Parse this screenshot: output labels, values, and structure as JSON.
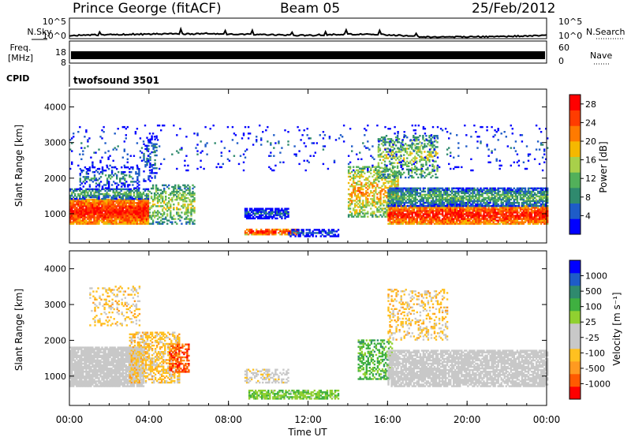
{
  "header": {
    "station": "Prince George (fitACF)",
    "beam": "Beam 05",
    "date": "25/Feb/2012"
  },
  "top_panels": {
    "nsky_label": "N.Sky",
    "nsky_ticks": [
      "10^5",
      "10^0"
    ],
    "nsearch_label": "N.Search",
    "nsearch_ticks": [
      "10^5",
      "10^0"
    ],
    "freq_label_1": "Freq.",
    "freq_label_2": "[MHz]",
    "freq_ticks": [
      "18",
      "8"
    ],
    "nave_label": "Nave",
    "nave_ticks": [
      "60",
      "0"
    ],
    "cpid_label": "CPID",
    "cpid_value": "twofsound 3501"
  },
  "colors": {
    "power": [
      "#0000ff",
      "#1e5cc8",
      "#2f8a6e",
      "#52b05a",
      "#a8d04a",
      "#f5b800",
      "#ff7a00",
      "#ff3c00",
      "#ff0000"
    ],
    "velocity": [
      "#ff0000",
      "#ff5a00",
      "#ff9a20",
      "#ffc020",
      "#c8c8c8",
      "#c8c8c8",
      "#90d030",
      "#3fb040",
      "#2f8a6e",
      "#1e5cc8",
      "#0000ff"
    ],
    "frame": "#000000"
  },
  "chart_data": [
    {
      "type": "heatmap",
      "name": "Power",
      "ylabel": "Slant Range [km]",
      "ylim": [
        180,
        4500
      ],
      "yticks": [
        "1000",
        "2000",
        "3000",
        "4000"
      ],
      "xlim": [
        0,
        24
      ],
      "xticks": [
        "00:00",
        "04:00",
        "08:00",
        "12:00",
        "16:00",
        "20:00",
        "00:00"
      ],
      "colorbar": {
        "label": "Power [dB]",
        "ticks": [
          "4",
          "8",
          "12",
          "16",
          "20",
          "24",
          "28"
        ],
        "range": [
          0,
          30
        ]
      },
      "regions": [
        {
          "t": [
            0.0,
            4.0
          ],
          "r": [
            700,
            1400
          ],
          "v": 28,
          "density": 0.95
        },
        {
          "t": [
            0.0,
            4.0
          ],
          "r": [
            1400,
            1700
          ],
          "v": 12,
          "density": 0.7
        },
        {
          "t": [
            0.5,
            3.5
          ],
          "r": [
            1700,
            2300
          ],
          "v": 8,
          "density": 0.35
        },
        {
          "t": [
            4.0,
            6.3
          ],
          "r": [
            700,
            1800
          ],
          "v": 16,
          "density": 0.45
        },
        {
          "t": [
            3.7,
            4.4
          ],
          "r": [
            1900,
            3200
          ],
          "v": 8,
          "density": 0.3
        },
        {
          "t": [
            8.8,
            11.0
          ],
          "r": [
            850,
            1150
          ],
          "v": 6,
          "density": 0.75
        },
        {
          "t": [
            8.8,
            11.5
          ],
          "r": [
            400,
            550
          ],
          "v": 28,
          "density": 0.85
        },
        {
          "t": [
            11.0,
            13.5
          ],
          "r": [
            350,
            550
          ],
          "v": 6,
          "density": 0.6
        },
        {
          "t": [
            14.0,
            16.5
          ],
          "r": [
            900,
            2300
          ],
          "v": 20,
          "density": 0.5
        },
        {
          "t": [
            16.0,
            24.0
          ],
          "r": [
            700,
            1200
          ],
          "v": 28,
          "density": 0.9
        },
        {
          "t": [
            16.0,
            24.0
          ],
          "r": [
            1200,
            1700
          ],
          "v": 12,
          "density": 0.8
        },
        {
          "t": [
            15.5,
            18.5
          ],
          "r": [
            2000,
            3200
          ],
          "v": 16,
          "density": 0.4
        },
        {
          "t": [
            0.0,
            24.0
          ],
          "r": [
            2200,
            3500
          ],
          "v": 6,
          "density": 0.05
        }
      ]
    },
    {
      "type": "heatmap",
      "name": "Velocity",
      "ylabel": "Slant Range [km]",
      "ylim": [
        180,
        4500
      ],
      "yticks": [
        "1000",
        "2000",
        "3000",
        "4000"
      ],
      "xlim": [
        0,
        24
      ],
      "xticks": [
        "00:00",
        "04:00",
        "08:00",
        "12:00",
        "16:00",
        "20:00",
        "00:00"
      ],
      "xlabel": "Time UT",
      "colorbar": {
        "label": "Velocity [m s⁻¹]",
        "ticks": [
          "1000",
          "500",
          "100",
          "25",
          "-25",
          "-100",
          "-500",
          "-1000"
        ],
        "range": [
          -1200,
          1200
        ]
      },
      "regions": [
        {
          "t": [
            0.0,
            3.7
          ],
          "r": [
            700,
            1800
          ],
          "v": 0,
          "density": 0.9
        },
        {
          "t": [
            3.0,
            5.5
          ],
          "r": [
            800,
            2200
          ],
          "v": -400,
          "density": 0.55
        },
        {
          "t": [
            5.0,
            6.0
          ],
          "r": [
            1100,
            1900
          ],
          "v": -900,
          "density": 0.6
        },
        {
          "t": [
            1.0,
            3.5
          ],
          "r": [
            2400,
            3500
          ],
          "v": -400,
          "density": 0.2
        },
        {
          "t": [
            8.8,
            11.0
          ],
          "r": [
            800,
            1200
          ],
          "v": -200,
          "density": 0.45
        },
        {
          "t": [
            9.0,
            13.5
          ],
          "r": [
            350,
            600
          ],
          "v": 300,
          "density": 0.65
        },
        {
          "t": [
            14.5,
            16.2
          ],
          "r": [
            900,
            2000
          ],
          "v": 400,
          "density": 0.5
        },
        {
          "t": [
            16.0,
            24.0
          ],
          "r": [
            700,
            1700
          ],
          "v": 0,
          "density": 0.8
        },
        {
          "t": [
            16.0,
            19.0
          ],
          "r": [
            2000,
            3400
          ],
          "v": -400,
          "density": 0.3
        }
      ]
    }
  ]
}
